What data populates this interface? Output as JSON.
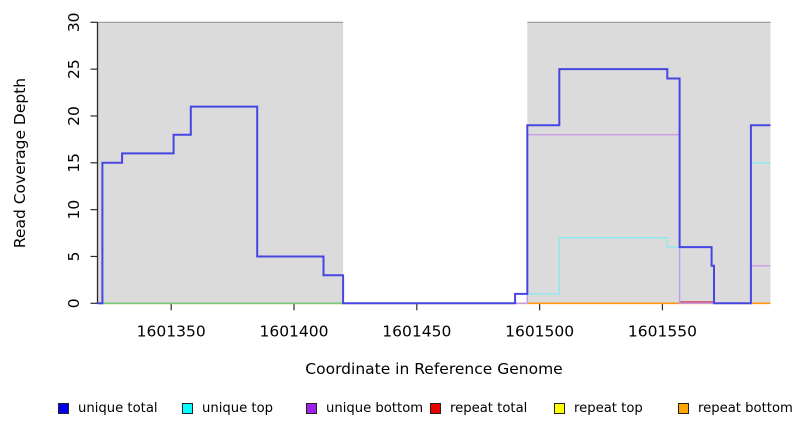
{
  "figure": {
    "xlabel": "Coordinate in Reference Genome",
    "ylabel": "Read Coverage Depth"
  },
  "legend": [
    {
      "label": "unique total",
      "color": "#0000EE"
    },
    {
      "label": "unique top",
      "color": "#00FFFF"
    },
    {
      "label": "unique bottom",
      "color": "#A020F0"
    },
    {
      "label": "repeat total",
      "color": "#EE0000"
    },
    {
      "label": "repeat top",
      "color": "#FFFF00"
    },
    {
      "label": "repeat bottom",
      "color": "#FFA500"
    }
  ],
  "chart_data": {
    "type": "line",
    "step": true,
    "title": "",
    "xlabel": "Coordinate in Reference Genome",
    "ylabel": "Read Coverage Depth",
    "xlim": [
      1601320,
      1601594
    ],
    "ylim": [
      0,
      30
    ],
    "x_ticks": [
      1601350,
      1601400,
      1601450,
      1601500,
      1601550
    ],
    "y_ticks": [
      0,
      5,
      10,
      15,
      20,
      25,
      30
    ],
    "grid": false,
    "legend_position": "bottom",
    "shade_color": "#DBDBDB",
    "shade_border_color": "#979797",
    "shaded_regions": [
      {
        "start": 1601320,
        "end": 1601420
      },
      {
        "start": 1601495,
        "end": 1601594
      }
    ],
    "series": [
      {
        "name": "repeat-top",
        "label": "repeat top",
        "color": "#F5F500",
        "width": 1.4,
        "points": [
          [
            1601320,
            0
          ]
        ],
        "end": 1601594
      },
      {
        "name": "repeat-total",
        "label": "repeat total",
        "color": "#CC4466",
        "width": 1.4,
        "points": [
          [
            1601320,
            0
          ]
        ],
        "end": 1601594,
        "raised_segments": [
          [
            1601557,
            1601571
          ]
        ]
      },
      {
        "name": "unique-top",
        "label": "unique top",
        "color": "#8BE9F0",
        "width": 1.4,
        "points": [
          [
            1601320,
            0
          ],
          [
            1601495,
            1
          ],
          [
            1601508,
            7
          ],
          [
            1601552,
            6
          ],
          [
            1601557,
            0
          ],
          [
            1601586,
            15
          ]
        ],
        "end": 1601594
      },
      {
        "name": "repeat-bottom",
        "label": "repeat bottom",
        "color": "#FF9914",
        "width": 1.7,
        "points": [
          [
            1601320,
            0
          ]
        ],
        "end": 1601594
      },
      {
        "name": "unique-bottom",
        "label": "unique bottom",
        "color": "#C79CE6",
        "width": 1.4,
        "points": [
          [
            1601320,
            0
          ],
          [
            1601495,
            18
          ],
          [
            1601557,
            0
          ],
          [
            1601586,
            4
          ]
        ],
        "end": 1601594
      },
      {
        "name": "baseline-green",
        "label": "",
        "color": "#7CC87C",
        "width": 1.7,
        "points": [
          [
            1601320,
            0
          ]
        ],
        "end": 1601420
      },
      {
        "name": "unique-total",
        "label": "unique total",
        "color": "#4746E3",
        "width": 2.0,
        "points": [
          [
            1601320,
            0
          ],
          [
            1601322,
            15
          ],
          [
            1601330,
            16
          ],
          [
            1601351,
            18
          ],
          [
            1601358,
            21
          ],
          [
            1601385,
            5
          ],
          [
            1601412,
            3
          ],
          [
            1601420,
            0
          ],
          [
            1601490,
            1
          ],
          [
            1601495,
            19
          ],
          [
            1601508,
            25
          ],
          [
            1601552,
            24
          ],
          [
            1601557,
            6
          ],
          [
            1601570,
            4
          ],
          [
            1601571,
            0
          ],
          [
            1601586,
            19
          ]
        ],
        "end": 1601594
      }
    ]
  }
}
